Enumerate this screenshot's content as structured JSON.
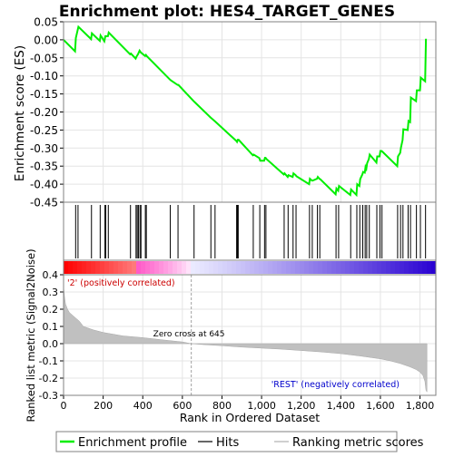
{
  "chart_data": {
    "type": "line",
    "title": "Enrichment plot: HES4_TARGET_GENES",
    "top_panel": {
      "ylabel": "Enrichment score (ES)",
      "ylim": [
        -0.45,
        0.05
      ],
      "yticks": [
        0.05,
        0.0,
        -0.05,
        -0.1,
        -0.15,
        -0.2,
        -0.25,
        -0.3,
        -0.35,
        -0.4,
        -0.45
      ],
      "ytick_labels": [
        "0.05",
        "0.00",
        "-0.05",
        "-0.10",
        "-0.15",
        "-0.20",
        "-0.25",
        "-0.30",
        "-0.35",
        "-0.40",
        "-0.45"
      ],
      "grid": true,
      "series": [
        {
          "name": "Enrichment profile",
          "color": "#00ee00",
          "x": [
            0,
            58,
            62,
            75,
            139,
            143,
            183,
            187,
            206,
            211,
            215,
            224,
            228,
            336,
            340,
            364,
            370,
            376,
            384,
            390,
            412,
            416,
            420,
            537,
            541,
            576,
            580,
            657,
            661,
            742,
            746,
            763,
            767,
            872,
            876,
            880,
            884,
            956,
            960,
            989,
            993,
            1013,
            1017,
            1020,
            1024,
            1112,
            1116,
            1132,
            1136,
            1157,
            1161,
            1172,
            1176,
            1240,
            1244,
            1254,
            1258,
            1280,
            1284,
            1292,
            1296,
            1374,
            1378,
            1387,
            1391,
            1448,
            1452,
            1479,
            1483,
            1494,
            1498,
            1509,
            1513,
            1521,
            1525,
            1529,
            1533,
            1542,
            1546,
            1580,
            1584,
            1596,
            1600,
            1606,
            1610,
            1685,
            1689,
            1700,
            1704,
            1712,
            1716,
            1738,
            1742,
            1750,
            1754,
            1780,
            1784,
            1800,
            1804,
            1826,
            1830
          ],
          "y": [
            0.0,
            -0.032,
            0.005,
            0.036,
            0.002,
            0.018,
            -0.003,
            0.012,
            -0.004,
            0.01,
            0.01,
            0.01,
            0.02,
            -0.04,
            -0.038,
            -0.052,
            -0.045,
            -0.04,
            -0.03,
            -0.035,
            -0.045,
            -0.042,
            -0.045,
            -0.11,
            -0.112,
            -0.125,
            -0.125,
            -0.17,
            -0.172,
            -0.215,
            -0.217,
            -0.225,
            -0.227,
            -0.28,
            -0.283,
            -0.277,
            -0.277,
            -0.32,
            -0.318,
            -0.328,
            -0.335,
            -0.335,
            -0.327,
            -0.327,
            -0.33,
            -0.373,
            -0.37,
            -0.38,
            -0.375,
            -0.38,
            -0.37,
            -0.375,
            -0.378,
            -0.4,
            -0.385,
            -0.39,
            -0.39,
            -0.385,
            -0.38,
            -0.385,
            -0.386,
            -0.428,
            -0.412,
            -0.418,
            -0.405,
            -0.43,
            -0.415,
            -0.43,
            -0.4,
            -0.405,
            -0.386,
            -0.373,
            -0.366,
            -0.368,
            -0.352,
            -0.357,
            -0.342,
            -0.33,
            -0.318,
            -0.34,
            -0.323,
            -0.323,
            -0.308,
            -0.308,
            -0.31,
            -0.35,
            -0.323,
            -0.313,
            -0.298,
            -0.278,
            -0.248,
            -0.25,
            -0.225,
            -0.228,
            -0.16,
            -0.17,
            -0.14,
            -0.14,
            -0.105,
            -0.115,
            0.003
          ]
        }
      ]
    },
    "hits_x": [
      61,
      73,
      141,
      185,
      209,
      213,
      226,
      338,
      366,
      372,
      378,
      386,
      391,
      413,
      418,
      539,
      578,
      659,
      744,
      765,
      874,
      878,
      882,
      958,
      991,
      1015,
      1022,
      1114,
      1134,
      1159,
      1174,
      1242,
      1256,
      1282,
      1294,
      1376,
      1389,
      1450,
      1481,
      1496,
      1511,
      1523,
      1531,
      1544,
      1582,
      1598,
      1608,
      1687,
      1702,
      1714,
      1740,
      1752,
      1782,
      1802,
      1828
    ],
    "middle_panel": {
      "label_pos": "'2' (positively correlated)",
      "label_neg": "'REST' (negatively correlated)"
    },
    "bottom_panel": {
      "type": "area",
      "ylabel": "Ranked list metric (Signal2Noise)",
      "xlabel": "Rank in Ordered Dataset",
      "ylim": [
        -0.3,
        0.4
      ],
      "yticks": [
        0.4,
        0.3,
        0.2,
        0.1,
        0.0,
        -0.1,
        -0.2,
        -0.3
      ],
      "ytick_labels": [
        "0.4",
        "0.3",
        "0.2",
        "0.1",
        "0.0",
        "-0.1",
        "-0.2",
        "-0.3"
      ],
      "xlim": [
        0,
        1880
      ],
      "xticks": [
        0,
        200,
        400,
        600,
        800,
        1000,
        1200,
        1400,
        1600,
        1800
      ],
      "xtick_labels": [
        "0",
        "200",
        "400",
        "600",
        "800",
        "1,000",
        "1,200",
        "1,400",
        "1,600",
        "1,800"
      ],
      "zero_cross_x": 645,
      "zero_cross_label": "Zero cross at 645",
      "metric_x": [
        0,
        5,
        10,
        20,
        30,
        50,
        80,
        100,
        150,
        200,
        300,
        400,
        500,
        600,
        645,
        700,
        800,
        900,
        1000,
        1100,
        1200,
        1300,
        1400,
        1500,
        1600,
        1650,
        1700,
        1750,
        1780,
        1800,
        1815,
        1825,
        1830,
        1835
      ],
      "metric_y": [
        0.33,
        0.27,
        0.23,
        0.2,
        0.18,
        0.16,
        0.13,
        0.1,
        0.08,
        0.065,
        0.045,
        0.035,
        0.022,
        0.01,
        0.0,
        -0.005,
        -0.012,
        -0.02,
        -0.026,
        -0.032,
        -0.04,
        -0.048,
        -0.058,
        -0.072,
        -0.088,
        -0.1,
        -0.115,
        -0.135,
        -0.15,
        -0.165,
        -0.185,
        -0.22,
        -0.27,
        -0.28
      ],
      "fill_color": "#c0c0c0"
    },
    "legend": {
      "placement": "bottom",
      "items": [
        {
          "label": "Enrichment profile",
          "color": "#00ee00",
          "style": "line"
        },
        {
          "label": "Hits",
          "color": "#000000",
          "style": "line"
        },
        {
          "label": "Ranking metric scores",
          "color": "#c0c0c0",
          "style": "line"
        }
      ]
    },
    "colors": {
      "heat_positive": "#ff0000",
      "heat_neutral": "#ffffff",
      "heat_negative": "#0000cc",
      "zero_cross_line": "#a0a0a0"
    }
  }
}
